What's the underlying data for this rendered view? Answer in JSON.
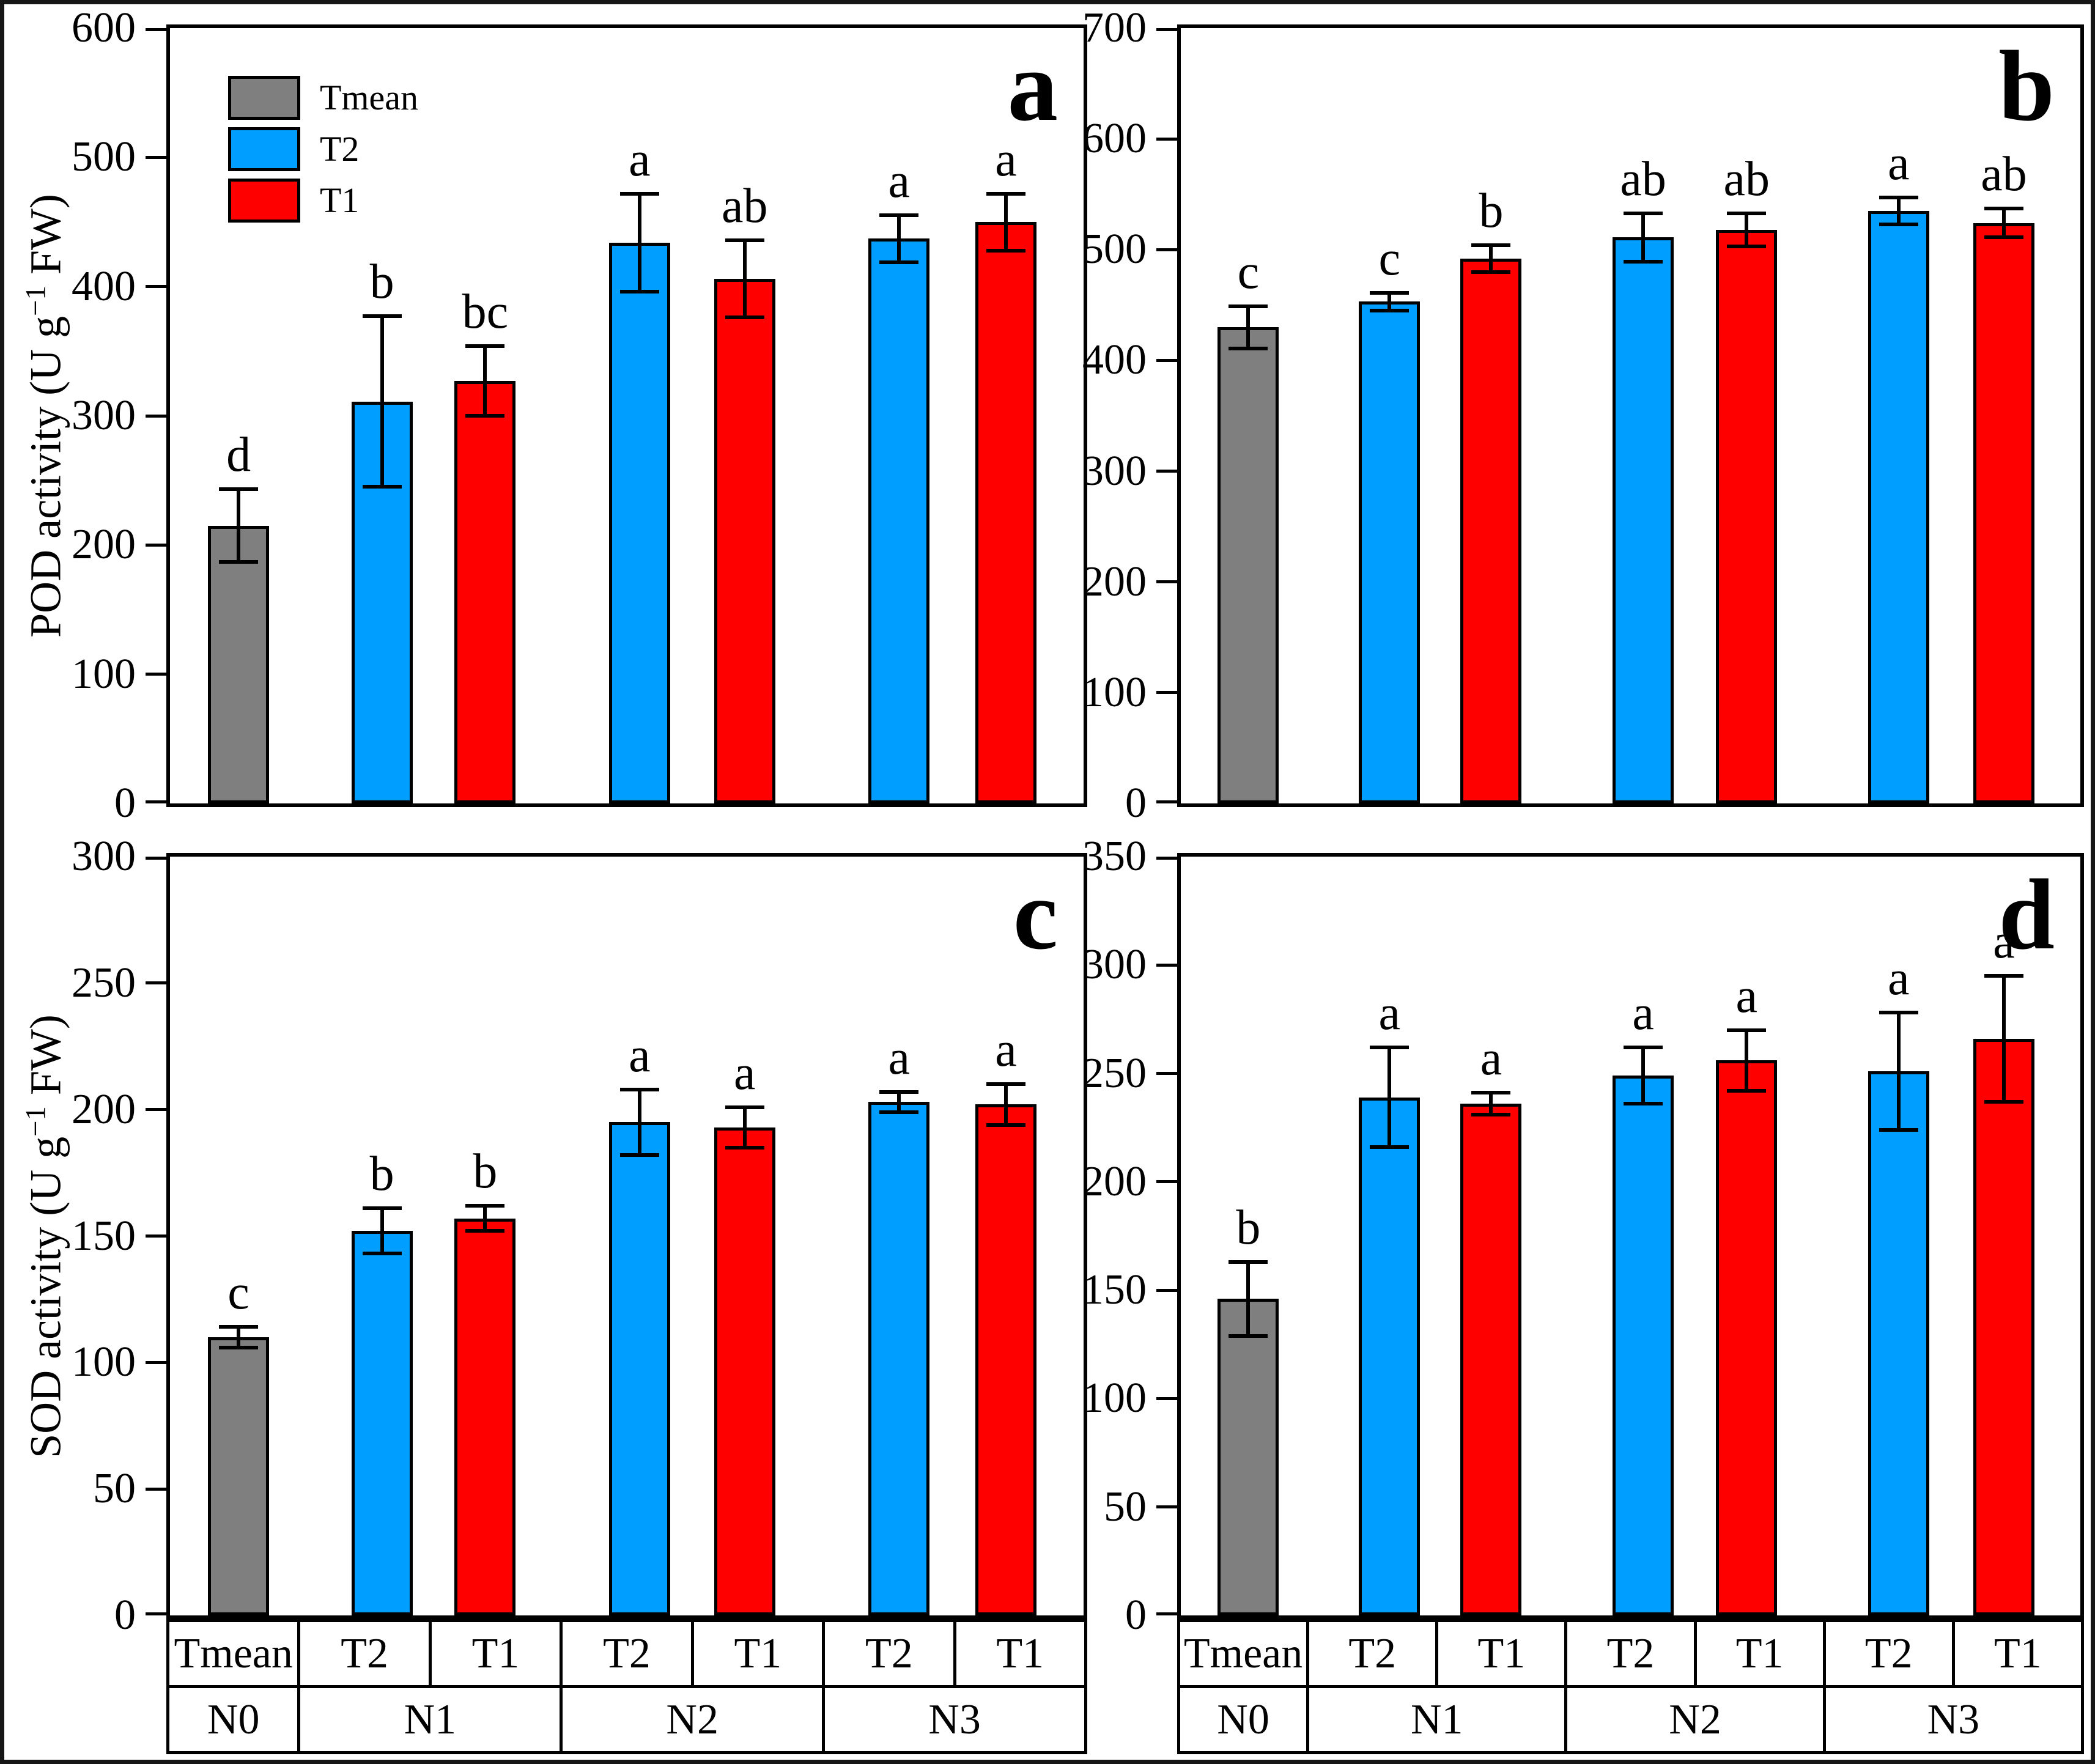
{
  "figure": {
    "background": "#ffffff",
    "ylabels": {
      "pod": {
        "prefix": "POD activity (U g",
        "sup": "−1",
        "suffix": " FW)"
      },
      "sod": {
        "prefix": "SOD activity (U g",
        "sup": "−1",
        "suffix": " FW)"
      }
    },
    "legend": [
      {
        "label": "Tmean",
        "color": "#7F7F7F"
      },
      {
        "label": "T2",
        "color": "#009FFF"
      },
      {
        "label": "T1",
        "color": "#FF0000"
      }
    ],
    "colors": {
      "Tmean": "#7F7F7F",
      "T2": "#009FFF",
      "T1": "#FF0000",
      "axis": "#000000"
    }
  },
  "chart_data": [
    {
      "panel": "a",
      "type": "bar",
      "ylabel": "POD activity (U g−1 FW)",
      "ylim": [
        0,
        600
      ],
      "ytick_step": 100,
      "grid": false,
      "legend_position": "top-left-inside",
      "x_treatments": [
        "Tmean",
        "T2",
        "T1",
        "T2",
        "T1",
        "T2",
        "T1"
      ],
      "x_groups": [
        "N0",
        "N1",
        "N2",
        "N3"
      ],
      "bars": [
        {
          "group": "N0",
          "treatment": "Tmean",
          "value": 215,
          "error": 28,
          "letter": "d"
        },
        {
          "group": "N1",
          "treatment": "T2",
          "value": 311,
          "error": 66,
          "letter": "b"
        },
        {
          "group": "N1",
          "treatment": "T1",
          "value": 327,
          "error": 27,
          "letter": "bc"
        },
        {
          "group": "N2",
          "treatment": "T2",
          "value": 434,
          "error": 38,
          "letter": "a"
        },
        {
          "group": "N2",
          "treatment": "T1",
          "value": 406,
          "error": 30,
          "letter": "ab"
        },
        {
          "group": "N3",
          "treatment": "T2",
          "value": 437,
          "error": 18,
          "letter": "a"
        },
        {
          "group": "N3",
          "treatment": "T1",
          "value": 450,
          "error": 22,
          "letter": "a"
        }
      ]
    },
    {
      "panel": "b",
      "type": "bar",
      "ylabel": "",
      "ylim": [
        0,
        700
      ],
      "ytick_step": 100,
      "grid": false,
      "x_treatments": [
        "Tmean",
        "T2",
        "T1",
        "T2",
        "T1",
        "T2",
        "T1"
      ],
      "x_groups": [
        "N0",
        "N1",
        "N2",
        "N3"
      ],
      "bars": [
        {
          "group": "N0",
          "treatment": "Tmean",
          "value": 430,
          "error": 19,
          "letter": "c"
        },
        {
          "group": "N1",
          "treatment": "T2",
          "value": 453,
          "error": 8,
          "letter": "c"
        },
        {
          "group": "N1",
          "treatment": "T1",
          "value": 492,
          "error": 12,
          "letter": "b"
        },
        {
          "group": "N2",
          "treatment": "T2",
          "value": 511,
          "error": 22,
          "letter": "ab"
        },
        {
          "group": "N2",
          "treatment": "T1",
          "value": 518,
          "error": 15,
          "letter": "ab"
        },
        {
          "group": "N3",
          "treatment": "T2",
          "value": 535,
          "error": 12,
          "letter": "a"
        },
        {
          "group": "N3",
          "treatment": "T1",
          "value": 524,
          "error": 13,
          "letter": "ab"
        }
      ]
    },
    {
      "panel": "c",
      "type": "bar",
      "ylabel": "SOD activity (U g−1 FW)",
      "ylim": [
        0,
        300
      ],
      "ytick_step": 50,
      "grid": false,
      "x_treatments": [
        "Tmean",
        "T2",
        "T1",
        "T2",
        "T1",
        "T2",
        "T1"
      ],
      "x_groups": [
        "N0",
        "N1",
        "N2",
        "N3"
      ],
      "bars": [
        {
          "group": "N0",
          "treatment": "Tmean",
          "value": 110,
          "error": 4,
          "letter": "c"
        },
        {
          "group": "N1",
          "treatment": "T2",
          "value": 152,
          "error": 9,
          "letter": "b"
        },
        {
          "group": "N1",
          "treatment": "T1",
          "value": 157,
          "error": 5,
          "letter": "b"
        },
        {
          "group": "N2",
          "treatment": "T2",
          "value": 195,
          "error": 13,
          "letter": "a"
        },
        {
          "group": "N2",
          "treatment": "T1",
          "value": 193,
          "error": 8,
          "letter": "a"
        },
        {
          "group": "N3",
          "treatment": "T2",
          "value": 203,
          "error": 4,
          "letter": "a"
        },
        {
          "group": "N3",
          "treatment": "T1",
          "value": 202,
          "error": 8,
          "letter": "a"
        }
      ]
    },
    {
      "panel": "d",
      "type": "bar",
      "ylabel": "",
      "ylim": [
        0,
        350
      ],
      "ytick_step": 50,
      "grid": false,
      "x_treatments": [
        "Tmean",
        "T2",
        "T1",
        "T2",
        "T1",
        "T2",
        "T1"
      ],
      "x_groups": [
        "N0",
        "N1",
        "N2",
        "N3"
      ],
      "bars": [
        {
          "group": "N0",
          "treatment": "Tmean",
          "value": 146,
          "error": 17,
          "letter": "b"
        },
        {
          "group": "N1",
          "treatment": "T2",
          "value": 239,
          "error": 23,
          "letter": "a"
        },
        {
          "group": "N1",
          "treatment": "T1",
          "value": 236,
          "error": 5,
          "letter": "a"
        },
        {
          "group": "N2",
          "treatment": "T2",
          "value": 249,
          "error": 13,
          "letter": "a"
        },
        {
          "group": "N2",
          "treatment": "T1",
          "value": 256,
          "error": 14,
          "letter": "a"
        },
        {
          "group": "N3",
          "treatment": "T2",
          "value": 251,
          "error": 27,
          "letter": "a"
        },
        {
          "group": "N3",
          "treatment": "T1",
          "value": 266,
          "error": 29,
          "letter": "a"
        }
      ]
    }
  ]
}
